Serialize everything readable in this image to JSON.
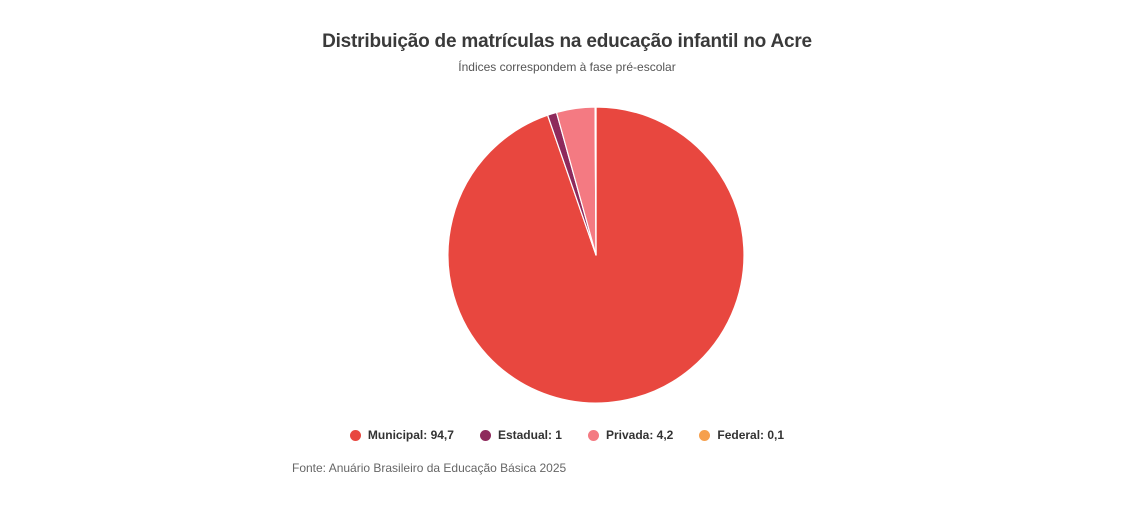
{
  "chart_data": {
    "type": "pie",
    "title": "Distribuição de matrículas na educação infantil no Acre",
    "subtitle": "Índices correspondem à fase pré-escolar",
    "slices": [
      {
        "label": "Municipal",
        "value": 94.7,
        "display": "94,7",
        "color": "#e8473f"
      },
      {
        "label": "Estadual",
        "value": 1,
        "display": "1",
        "color": "#8e2a5c"
      },
      {
        "label": "Privada",
        "value": 4.2,
        "display": "4,2",
        "color": "#f47a82"
      },
      {
        "label": "Federal",
        "value": 0.1,
        "display": "0,1",
        "color": "#f6a04d"
      }
    ],
    "legend_position": "bottom"
  },
  "source": "Fonte: Anuário Brasileiro da Educação Básica 2025",
  "legend": [
    {
      "text": "Municipal: 94,7"
    },
    {
      "text": "Estadual: 1"
    },
    {
      "text": "Privada: 4,2"
    },
    {
      "text": "Federal: 0,1"
    }
  ]
}
